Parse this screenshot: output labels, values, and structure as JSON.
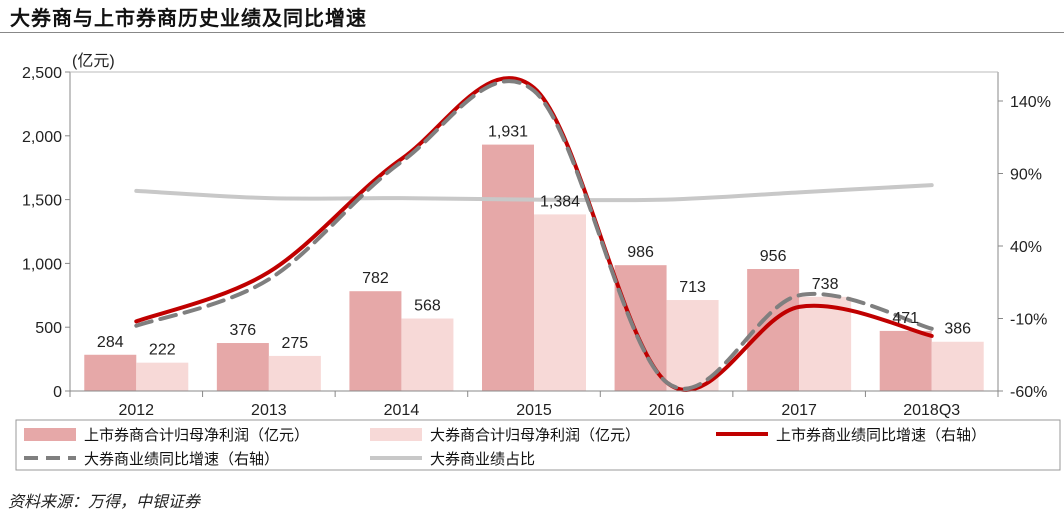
{
  "title": "大券商与上市券商历史业绩及同比增速",
  "source": "资料来源：万得，中银证券",
  "chart_data": {
    "type": "bar",
    "unit_label": "(亿元)",
    "categories": [
      "2012",
      "2013",
      "2014",
      "2015",
      "2016",
      "2017",
      "2018Q3"
    ],
    "ylim": [
      0,
      2500
    ],
    "yticks": [
      0,
      500,
      1000,
      1500,
      2000,
      2500
    ],
    "ytick_labels": [
      "0",
      "500",
      "1,000",
      "1,500",
      "2,000",
      "2,500"
    ],
    "y2lim": [
      -60,
      160
    ],
    "y2ticks": [
      -60,
      -10,
      40,
      90,
      140
    ],
    "y2tick_labels": [
      "-60%",
      "-10%",
      "40%",
      "90%",
      "140%"
    ],
    "series": [
      {
        "name": "上市券商合计归母净利润（亿元）",
        "kind": "bar",
        "axis": "left",
        "color": "#e6a8a8",
        "values": [
          284,
          376,
          782,
          1931,
          986,
          956,
          471
        ],
        "labels": [
          "284",
          "376",
          "782",
          "1,931",
          "986",
          "956",
          "471"
        ]
      },
      {
        "name": "大券商合计归母净利润（亿元）",
        "kind": "bar",
        "axis": "left",
        "color": "#f7d9d7",
        "values": [
          222,
          275,
          568,
          1384,
          713,
          738,
          386
        ],
        "labels": [
          "222",
          "275",
          "568",
          "1,384",
          "713",
          "738",
          "386"
        ]
      },
      {
        "name": "上市券商业绩同比增速（右轴）",
        "kind": "line",
        "axis": "right",
        "color": "#c00000",
        "values": [
          -12,
          22,
          100,
          149,
          -54,
          -2,
          -22
        ]
      },
      {
        "name": "大券商业绩同比增速（右轴）",
        "kind": "line-dashed",
        "axis": "right",
        "color": "#7f7f7f",
        "values": [
          -15,
          17,
          98,
          147,
          -54,
          6,
          -17
        ]
      },
      {
        "name": "大券商业绩占比",
        "kind": "line",
        "axis": "right",
        "color": "#c8c8c8",
        "values": [
          78,
          73,
          73,
          72,
          72,
          77,
          82
        ]
      }
    ],
    "legend_position": "bottom",
    "grid": false
  }
}
